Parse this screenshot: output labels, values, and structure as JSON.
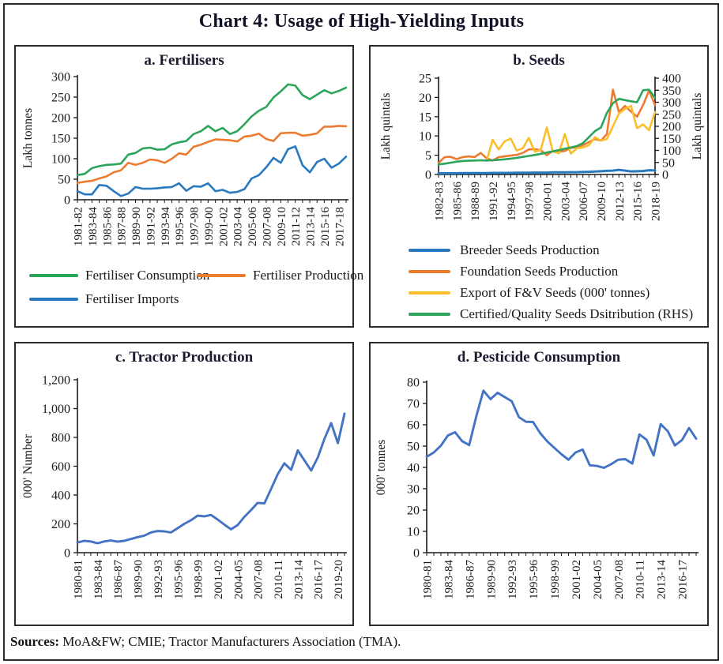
{
  "page": {
    "title": "Chart 4: Usage of High-Yielding Inputs",
    "sources_label": "Sources:",
    "sources_text": " MoA&FW; CMIE; Tractor Manufacturers Association (TMA)."
  },
  "colors": {
    "green": "#2CA45A",
    "orange": "#EC7C30",
    "blue": "#2979BE",
    "yellow": "#FBBF2C",
    "steel_blue": "#4472C4",
    "axis": "#1a1a1a"
  },
  "chart_data": [
    {
      "id": "fertilisers",
      "title": "a. Fertilisers",
      "type": "line",
      "ylabel": "Lakh tonnes",
      "ylim": [
        0,
        300
      ],
      "yticks": [
        0,
        50,
        100,
        150,
        200,
        250,
        300
      ],
      "ytick_labels": [
        "0",
        "50",
        "100",
        "150",
        "200",
        "250",
        "300"
      ],
      "n": 38,
      "xtick_every": 2,
      "xtick_labels": [
        "1981-82",
        "1983-84",
        "1985-86",
        "1987-88",
        "1989-90",
        "1991-92",
        "1993-94",
        "1995-96",
        "1997-98",
        "1999-00",
        "2001-02",
        "2003-04",
        "2005-06",
        "2007-08",
        "2009-10",
        "2011-12",
        "2013-14",
        "2015-16",
        "2017-18"
      ],
      "grid": false,
      "legend_position": "bottom",
      "series": [
        {
          "name": "Fertiliser Consumption",
          "color": "green",
          "values": [
            60,
            63,
            77,
            82,
            85,
            86,
            88,
            110,
            114,
            125,
            127,
            122,
            123,
            135,
            140,
            143,
            160,
            167,
            180,
            167,
            175,
            160,
            167,
            184,
            203,
            217,
            226,
            249,
            264,
            281,
            278,
            255,
            245,
            256,
            267,
            259,
            265,
            273
          ]
        },
        {
          "name": "Fertiliser Production",
          "color": "orange",
          "values": [
            41,
            44,
            46,
            52,
            57,
            67,
            72,
            90,
            85,
            90,
            98,
            96,
            90,
            100,
            113,
            110,
            129,
            134,
            141,
            147,
            146,
            145,
            142,
            154,
            156,
            161,
            148,
            143,
            162,
            163,
            163,
            156,
            158,
            162,
            178,
            178,
            180,
            179
          ]
        },
        {
          "name": "Fertiliser Imports",
          "color": "blue",
          "values": [
            21,
            13,
            13,
            36,
            34,
            21,
            9,
            15,
            31,
            27,
            27,
            28,
            30,
            31,
            40,
            22,
            33,
            32,
            40,
            21,
            24,
            17,
            19,
            26,
            52,
            60,
            79,
            102,
            90,
            123,
            130,
            84,
            67,
            92,
            100,
            78,
            88,
            105
          ]
        }
      ]
    },
    {
      "id": "seeds",
      "title": "b. Seeds",
      "type": "line",
      "ylabel": "Lakh quintals",
      "ylim": [
        0,
        25
      ],
      "yticks": [
        0,
        5,
        10,
        15,
        20,
        25
      ],
      "ytick_labels": [
        "0",
        "5",
        "10",
        "15",
        "20",
        "25"
      ],
      "ylabel_right": "Lakh quintals",
      "ylim_right": [
        0,
        400
      ],
      "yticks_right": [
        0,
        50,
        100,
        150,
        200,
        250,
        300,
        350,
        400
      ],
      "ytick_labels_right": [
        "0",
        "50",
        "100",
        "150",
        "200",
        "250",
        "300",
        "350",
        "400"
      ],
      "n": 37,
      "xtick_every": 3,
      "xtick_labels": [
        "1982-83",
        "1985-86",
        "1988-89",
        "1991-92",
        "1994-95",
        "1997-98",
        "2000-01",
        "2003-04",
        "2006-07",
        "2009-10",
        "2012-13",
        "2015-16",
        "2018-19"
      ],
      "grid": false,
      "legend_position": "bottom",
      "series": [
        {
          "name": "Breeder Seeds Production",
          "color": "blue",
          "width": 3,
          "values": [
            0.3,
            0.3,
            0.3,
            0.3,
            0.35,
            0.35,
            0.35,
            0.35,
            0.35,
            0.4,
            0.4,
            0.4,
            0.4,
            0.45,
            0.45,
            0.45,
            0.5,
            0.5,
            0.5,
            0.55,
            0.55,
            0.55,
            0.6,
            0.6,
            0.65,
            0.7,
            0.75,
            0.85,
            0.95,
            1.0,
            1.2,
            1.0,
            0.8,
            0.85,
            0.9,
            1.1,
            1.05
          ]
        },
        {
          "name": "Foundation Seeds Production",
          "color": "orange",
          "values": [
            3.0,
            4.5,
            4.6,
            4.0,
            4.5,
            4.7,
            4.5,
            5.6,
            4.2,
            3.6,
            4.5,
            4.7,
            4.9,
            5.1,
            5.6,
            6.5,
            6.6,
            6.3,
            5.0,
            6.1,
            5.9,
            6.1,
            6.9,
            7.1,
            7.6,
            8.4,
            9.2,
            8.8,
            10.5,
            22.0,
            16.2,
            17.8,
            16.3,
            15.0,
            18.0,
            21.8,
            18.0
          ]
        },
        {
          "name": "Export of F&V Seeds (000' tonnes)",
          "color": "yellow",
          "values": [
            null,
            null,
            null,
            null,
            null,
            null,
            null,
            null,
            3.6,
            9.0,
            6.5,
            8.6,
            9.3,
            6.2,
            6.8,
            9.5,
            5.9,
            6.4,
            12.2,
            6.0,
            5.5,
            10.5,
            5.4,
            6.8,
            7.0,
            7.6,
            9.7,
            8.8,
            9.2,
            12.5,
            15.8,
            17.0,
            17.8,
            12.0,
            13.0,
            11.5,
            16.2
          ]
        },
        {
          "name": "Certified/Quality Seeds Dsitribution (RHS)",
          "color": "green",
          "axis": "right",
          "values": [
            42,
            45,
            49,
            53,
            56,
            57,
            58,
            59,
            58,
            59,
            61,
            63,
            66,
            69,
            73,
            77,
            81,
            86,
            91,
            96,
            101,
            107,
            112,
            118,
            130,
            155,
            180,
            195,
            256,
            296,
            314,
            309,
            304,
            300,
            350,
            352,
            318
          ]
        }
      ]
    },
    {
      "id": "tractor_production",
      "title": "c. Tractor Production",
      "type": "line",
      "ylabel": "000' Number",
      "ylim": [
        0,
        1200
      ],
      "yticks": [
        0,
        200,
        400,
        600,
        800,
        1000,
        1200
      ],
      "ytick_labels": [
        "0",
        "200",
        "400",
        "600",
        "800",
        "1,000",
        "1,200"
      ],
      "n": 41,
      "xtick_every": 3,
      "xtick_labels": [
        "1980-81",
        "1983-84",
        "1986-87",
        "1989-90",
        "1992-93",
        "1995-96",
        "1998-99",
        "2001-02",
        "2004-05",
        "2007-08",
        "2010-11",
        "2013-14",
        "2016-17",
        "2019-20"
      ],
      "grid": false,
      "series": [
        {
          "name": "Tractor Production",
          "color": "steel_blue",
          "width": 2.9,
          "values": [
            70,
            82,
            78,
            65,
            78,
            85,
            76,
            82,
            95,
            108,
            118,
            140,
            150,
            148,
            140,
            170,
            200,
            225,
            257,
            252,
            262,
            230,
            195,
            162,
            192,
            249,
            296,
            346,
            342,
            443,
            545,
            620,
            575,
            710,
            640,
            570,
            661,
            790,
            900,
            760,
            965
          ]
        }
      ]
    },
    {
      "id": "pesticide_consumption",
      "title": "d. Pesticide Consumption",
      "type": "line",
      "ylabel": "000' tonnes",
      "ylim": [
        0,
        80
      ],
      "yticks": [
        0,
        10,
        20,
        30,
        40,
        50,
        60,
        70,
        80
      ],
      "ytick_labels": [
        "0",
        "10",
        "20",
        "30",
        "40",
        "50",
        "60",
        "70",
        "80"
      ],
      "n": 39,
      "xtick_every": 3,
      "xtick_labels": [
        "1980-81",
        "1983-84",
        "1986-87",
        "1989-90",
        "1992-93",
        "1995-96",
        "1998-99",
        "2001-02",
        "2004-05",
        "2007-08",
        "2010-11",
        "2013-14",
        "2016-17"
      ],
      "grid": false,
      "series": [
        {
          "name": "Pesticide Consumption",
          "color": "steel_blue",
          "width": 2.9,
          "values": [
            45,
            47,
            50.2,
            55,
            56.5,
            52.3,
            50.5,
            64,
            76,
            72,
            75,
            73,
            71,
            63.6,
            61.4,
            61.3,
            56.1,
            52.2,
            49.2,
            46.2,
            43.6,
            47,
            48.4,
            41,
            40.7,
            39.8,
            41.5,
            43.6,
            43.9,
            41.8,
            55.5,
            53,
            45.6,
            60.3,
            57,
            50.3,
            52.8,
            58.5,
            53.5
          ]
        }
      ]
    }
  ]
}
